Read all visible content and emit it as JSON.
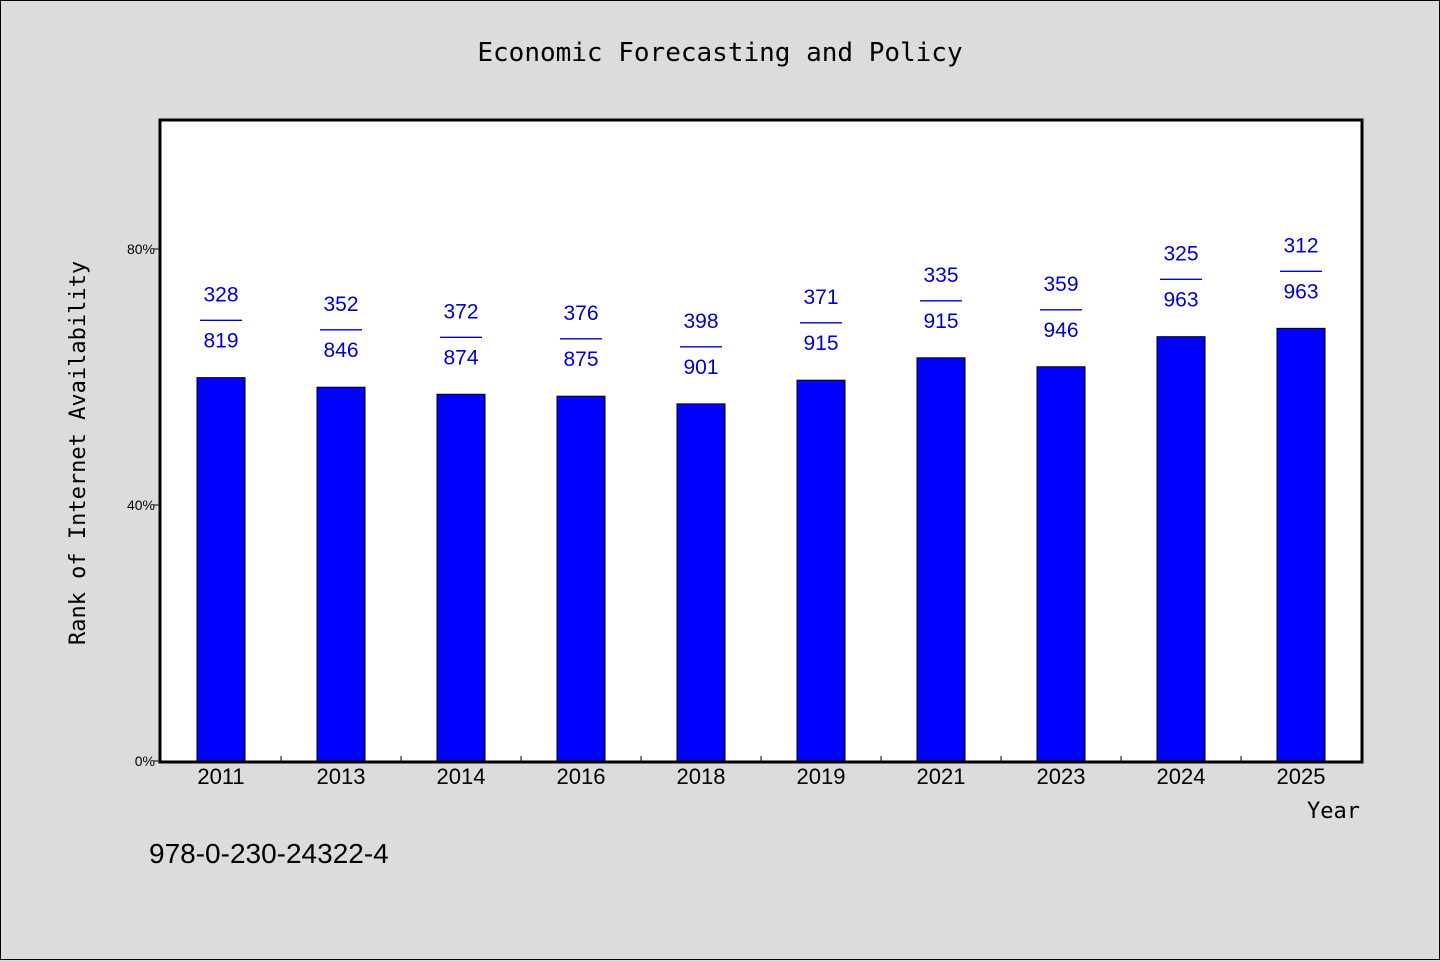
{
  "footnote": "978-0-230-24322-4",
  "colors": {
    "bar": "#0000ff",
    "label": "#0000cc",
    "plot_bg": "#ffffff",
    "page_bg": "#dcdcdc"
  },
  "chart_data": {
    "type": "bar",
    "title": "Economic Forecasting and Policy",
    "xlabel": "Year",
    "ylabel": "Rank of Internet Availability",
    "ylim": [
      0,
      100
    ],
    "yticks": [
      0,
      40,
      80
    ],
    "ytick_labels": [
      "0%",
      "40%",
      "80%"
    ],
    "grid": false,
    "categories": [
      "2011",
      "2013",
      "2014",
      "2016",
      "2018",
      "2019",
      "2021",
      "2023",
      "2024",
      "2025"
    ],
    "values": [
      59.9,
      58.4,
      57.3,
      57.0,
      55.8,
      59.5,
      63.0,
      61.6,
      66.3,
      67.6
    ],
    "labels_top": [
      "328",
      "352",
      "372",
      "376",
      "398",
      "371",
      "335",
      "359",
      "325",
      "312"
    ],
    "labels_sep": "——",
    "labels_bottom": [
      "819",
      "846",
      "874",
      "875",
      "901",
      "915",
      "915",
      "946",
      "963",
      "963"
    ]
  }
}
